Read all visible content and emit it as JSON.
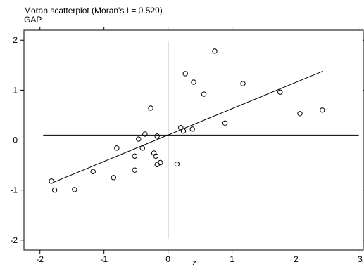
{
  "chart_data": {
    "type": "scatter",
    "title": "Moran scatterplot (Moran's I = 0.529)",
    "subtitle": "GAP",
    "xlabel": "z",
    "ylabel": "",
    "xlim": [
      -2.25,
      3.05
    ],
    "ylim": [
      -2.2,
      2.2
    ],
    "xticks": [
      -2,
      -1,
      0,
      1,
      2,
      3
    ],
    "yticks": [
      -2,
      -1,
      0,
      1,
      2
    ],
    "grid": false,
    "mean_line_y": 0.1,
    "mean_line_x": 0.0,
    "regression": {
      "x": [
        -1.8,
        2.42
      ],
      "y": [
        -0.85,
        1.38
      ]
    },
    "points": [
      {
        "x": -1.82,
        "y": -0.82
      },
      {
        "x": -1.77,
        "y": -1.0
      },
      {
        "x": -1.46,
        "y": -0.99
      },
      {
        "x": -1.17,
        "y": -0.63
      },
      {
        "x": -0.85,
        "y": -0.75
      },
      {
        "x": -0.8,
        "y": -0.16
      },
      {
        "x": -0.52,
        "y": -0.6
      },
      {
        "x": -0.52,
        "y": -0.32
      },
      {
        "x": -0.46,
        "y": 0.02
      },
      {
        "x": -0.4,
        "y": -0.16
      },
      {
        "x": -0.36,
        "y": 0.12
      },
      {
        "x": -0.27,
        "y": 0.64
      },
      {
        "x": -0.22,
        "y": -0.26
      },
      {
        "x": -0.19,
        "y": -0.32
      },
      {
        "x": -0.17,
        "y": -0.49
      },
      {
        "x": -0.17,
        "y": 0.08
      },
      {
        "x": -0.12,
        "y": -0.45
      },
      {
        "x": 0.14,
        "y": -0.48
      },
      {
        "x": 0.2,
        "y": 0.25
      },
      {
        "x": 0.24,
        "y": 0.18
      },
      {
        "x": 0.27,
        "y": 1.33
      },
      {
        "x": 0.38,
        "y": 0.22
      },
      {
        "x": 0.4,
        "y": 1.16
      },
      {
        "x": 0.56,
        "y": 0.92
      },
      {
        "x": 0.73,
        "y": 1.78
      },
      {
        "x": 0.89,
        "y": 0.34
      },
      {
        "x": 1.17,
        "y": 1.13
      },
      {
        "x": 1.75,
        "y": 0.96
      },
      {
        "x": 2.06,
        "y": 0.53
      },
      {
        "x": 2.41,
        "y": 0.6
      }
    ],
    "colors": {
      "points": "#000000",
      "lines": "#000000",
      "frame": "#000000"
    }
  }
}
